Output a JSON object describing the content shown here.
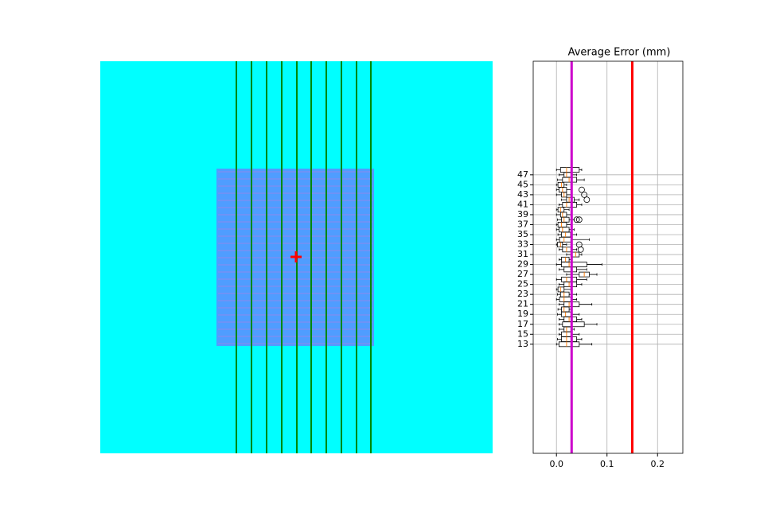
{
  "chart_data": {
    "type": "boxplot",
    "title": "Average Error (mm)",
    "positions": [
      13,
      14,
      15,
      16,
      17,
      18,
      19,
      20,
      21,
      22,
      23,
      24,
      25,
      26,
      27,
      28,
      29,
      30,
      31,
      32,
      33,
      34,
      35,
      36,
      37,
      38,
      39,
      40,
      41,
      42,
      43,
      44,
      45,
      46,
      47,
      48
    ],
    "boxes": [
      {
        "whislo": 0.0,
        "q1": 0.005,
        "med": 0.02,
        "q3": 0.045,
        "whishi": 0.07,
        "fliers": []
      },
      {
        "whislo": 0.002,
        "q1": 0.01,
        "med": 0.02,
        "q3": 0.04,
        "whishi": 0.05,
        "fliers": []
      },
      {
        "whislo": 0.005,
        "q1": 0.01,
        "med": 0.02,
        "q3": 0.03,
        "whishi": 0.045,
        "fliers": []
      },
      {
        "whislo": 0.005,
        "q1": 0.015,
        "med": 0.02,
        "q3": 0.03,
        "whishi": 0.035,
        "fliers": []
      },
      {
        "whislo": 0.005,
        "q1": 0.012,
        "med": 0.03,
        "q3": 0.055,
        "whishi": 0.08,
        "fliers": []
      },
      {
        "whislo": 0.005,
        "q1": 0.015,
        "med": 0.025,
        "q3": 0.04,
        "whishi": 0.05,
        "fliers": []
      },
      {
        "whislo": 0.002,
        "q1": 0.01,
        "med": 0.018,
        "q3": 0.03,
        "whishi": 0.045,
        "fliers": []
      },
      {
        "whislo": 0.003,
        "q1": 0.01,
        "med": 0.015,
        "q3": 0.025,
        "whishi": 0.03,
        "fliers": []
      },
      {
        "whislo": 0.005,
        "q1": 0.015,
        "med": 0.025,
        "q3": 0.045,
        "whishi": 0.07,
        "fliers": []
      },
      {
        "whislo": 0.0,
        "q1": 0.006,
        "med": 0.015,
        "q3": 0.03,
        "whishi": 0.04,
        "fliers": []
      },
      {
        "whislo": 0.002,
        "q1": 0.008,
        "med": 0.015,
        "q3": 0.025,
        "whishi": 0.04,
        "fliers": []
      },
      {
        "whislo": 0.0,
        "q1": 0.003,
        "med": 0.008,
        "q3": 0.015,
        "whishi": 0.03,
        "fliers": []
      },
      {
        "whislo": 0.005,
        "q1": 0.015,
        "med": 0.025,
        "q3": 0.04,
        "whishi": 0.05,
        "fliers": []
      },
      {
        "whislo": 0.0,
        "q1": 0.01,
        "med": 0.02,
        "q3": 0.04,
        "whishi": 0.06,
        "fliers": []
      },
      {
        "whislo": 0.02,
        "q1": 0.045,
        "med": 0.055,
        "q3": 0.065,
        "whishi": 0.08,
        "fliers": []
      },
      {
        "whislo": 0.005,
        "q1": 0.015,
        "med": 0.03,
        "q3": 0.04,
        "whishi": 0.06,
        "fliers": []
      },
      {
        "whislo": 0.0,
        "q1": 0.01,
        "med": 0.025,
        "q3": 0.06,
        "whishi": 0.09,
        "fliers": []
      },
      {
        "whislo": 0.005,
        "q1": 0.01,
        "med": 0.018,
        "q3": 0.025,
        "whishi": 0.03,
        "fliers": []
      },
      {
        "whislo": 0.02,
        "q1": 0.03,
        "med": 0.038,
        "q3": 0.045,
        "whishi": 0.05,
        "fliers": []
      },
      {
        "whislo": 0.005,
        "q1": 0.012,
        "med": 0.02,
        "q3": 0.03,
        "whishi": 0.04,
        "fliers": [
          0.048
        ]
      },
      {
        "whislo": 0.0,
        "q1": 0.002,
        "med": 0.008,
        "q3": 0.012,
        "whishi": 0.02,
        "fliers": [
          0.045
        ]
      },
      {
        "whislo": 0.0,
        "q1": 0.006,
        "med": 0.015,
        "q3": 0.03,
        "whishi": 0.065,
        "fliers": []
      },
      {
        "whislo": 0.003,
        "q1": 0.01,
        "med": 0.018,
        "q3": 0.028,
        "whishi": 0.04,
        "fliers": []
      },
      {
        "whislo": 0.0,
        "q1": 0.005,
        "med": 0.012,
        "q3": 0.025,
        "whishi": 0.035,
        "fliers": []
      },
      {
        "whislo": 0.0,
        "q1": 0.003,
        "med": 0.01,
        "q3": 0.02,
        "whishi": 0.03,
        "fliers": []
      },
      {
        "whislo": 0.002,
        "q1": 0.01,
        "med": 0.015,
        "q3": 0.025,
        "whishi": 0.035,
        "fliers": [
          0.04,
          0.045
        ]
      },
      {
        "whislo": 0.0,
        "q1": 0.008,
        "med": 0.012,
        "q3": 0.02,
        "whishi": 0.03,
        "fliers": []
      },
      {
        "whislo": 0.0,
        "q1": 0.003,
        "med": 0.008,
        "q3": 0.015,
        "whishi": 0.025,
        "fliers": []
      },
      {
        "whislo": 0.005,
        "q1": 0.012,
        "med": 0.02,
        "q3": 0.04,
        "whishi": 0.05,
        "fliers": []
      },
      {
        "whislo": 0.01,
        "q1": 0.02,
        "med": 0.025,
        "q3": 0.035,
        "whishi": 0.045,
        "fliers": [
          0.06
        ]
      },
      {
        "whislo": 0.0,
        "q1": 0.01,
        "med": 0.015,
        "q3": 0.02,
        "whishi": 0.03,
        "fliers": [
          0.055
        ]
      },
      {
        "whislo": 0.0,
        "q1": 0.005,
        "med": 0.012,
        "q3": 0.02,
        "whishi": 0.03,
        "fliers": [
          0.05
        ]
      },
      {
        "whislo": 0.0,
        "q1": 0.003,
        "med": 0.01,
        "q3": 0.015,
        "whishi": 0.02,
        "fliers": []
      },
      {
        "whislo": 0.002,
        "q1": 0.012,
        "med": 0.025,
        "q3": 0.04,
        "whishi": 0.055,
        "fliers": []
      },
      {
        "whislo": 0.005,
        "q1": 0.015,
        "med": 0.02,
        "q3": 0.03,
        "whishi": 0.04,
        "fliers": []
      },
      {
        "whislo": 0.0,
        "q1": 0.008,
        "med": 0.02,
        "q3": 0.045,
        "whishi": 0.05,
        "fliers": []
      }
    ],
    "reference_lines": [
      {
        "value": 0.03,
        "color": "#cc00cc"
      },
      {
        "value": 0.15,
        "color": "#ff0000"
      }
    ],
    "xlim": [
      -0.046,
      0.25
    ],
    "xticks": [
      {
        "value": 0,
        "label": "0.0"
      },
      {
        "value": 0.1,
        "label": "0.1"
      },
      {
        "value": 0.2,
        "label": "0.2"
      }
    ],
    "ylim": [
      -8.9,
      69.8
    ],
    "yticks": [
      13,
      15,
      17,
      19,
      21,
      23,
      25,
      27,
      29,
      31,
      33,
      35,
      37,
      39,
      41,
      43,
      45,
      47
    ],
    "grid": true
  }
}
